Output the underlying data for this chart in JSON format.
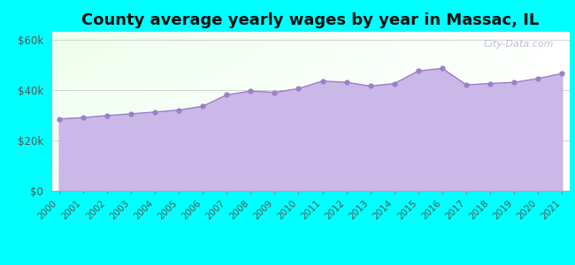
{
  "title": "County average yearly wages by year in Massac, IL",
  "years": [
    2000,
    2001,
    2002,
    2003,
    2004,
    2005,
    2006,
    2007,
    2008,
    2009,
    2010,
    2011,
    2012,
    2013,
    2014,
    2015,
    2016,
    2017,
    2018,
    2019,
    2020,
    2021
  ],
  "values": [
    28500,
    29000,
    29800,
    30500,
    31200,
    32000,
    33500,
    38000,
    39500,
    39000,
    40500,
    43500,
    43000,
    41500,
    42500,
    47500,
    48500,
    42000,
    42500,
    43000,
    44500,
    46500
  ],
  "ylim": [
    0,
    63000
  ],
  "yticks": [
    0,
    20000,
    40000,
    60000
  ],
  "ytick_labels": [
    "$0",
    "$20k",
    "$40k",
    "$60k"
  ],
  "fill_color": "#c9b8e8",
  "line_color": "#9b7fc7",
  "marker_color": "#9b7fc7",
  "bg_color_outer": "#00ffff",
  "title_fontsize": 13,
  "watermark": "City-Data.com"
}
